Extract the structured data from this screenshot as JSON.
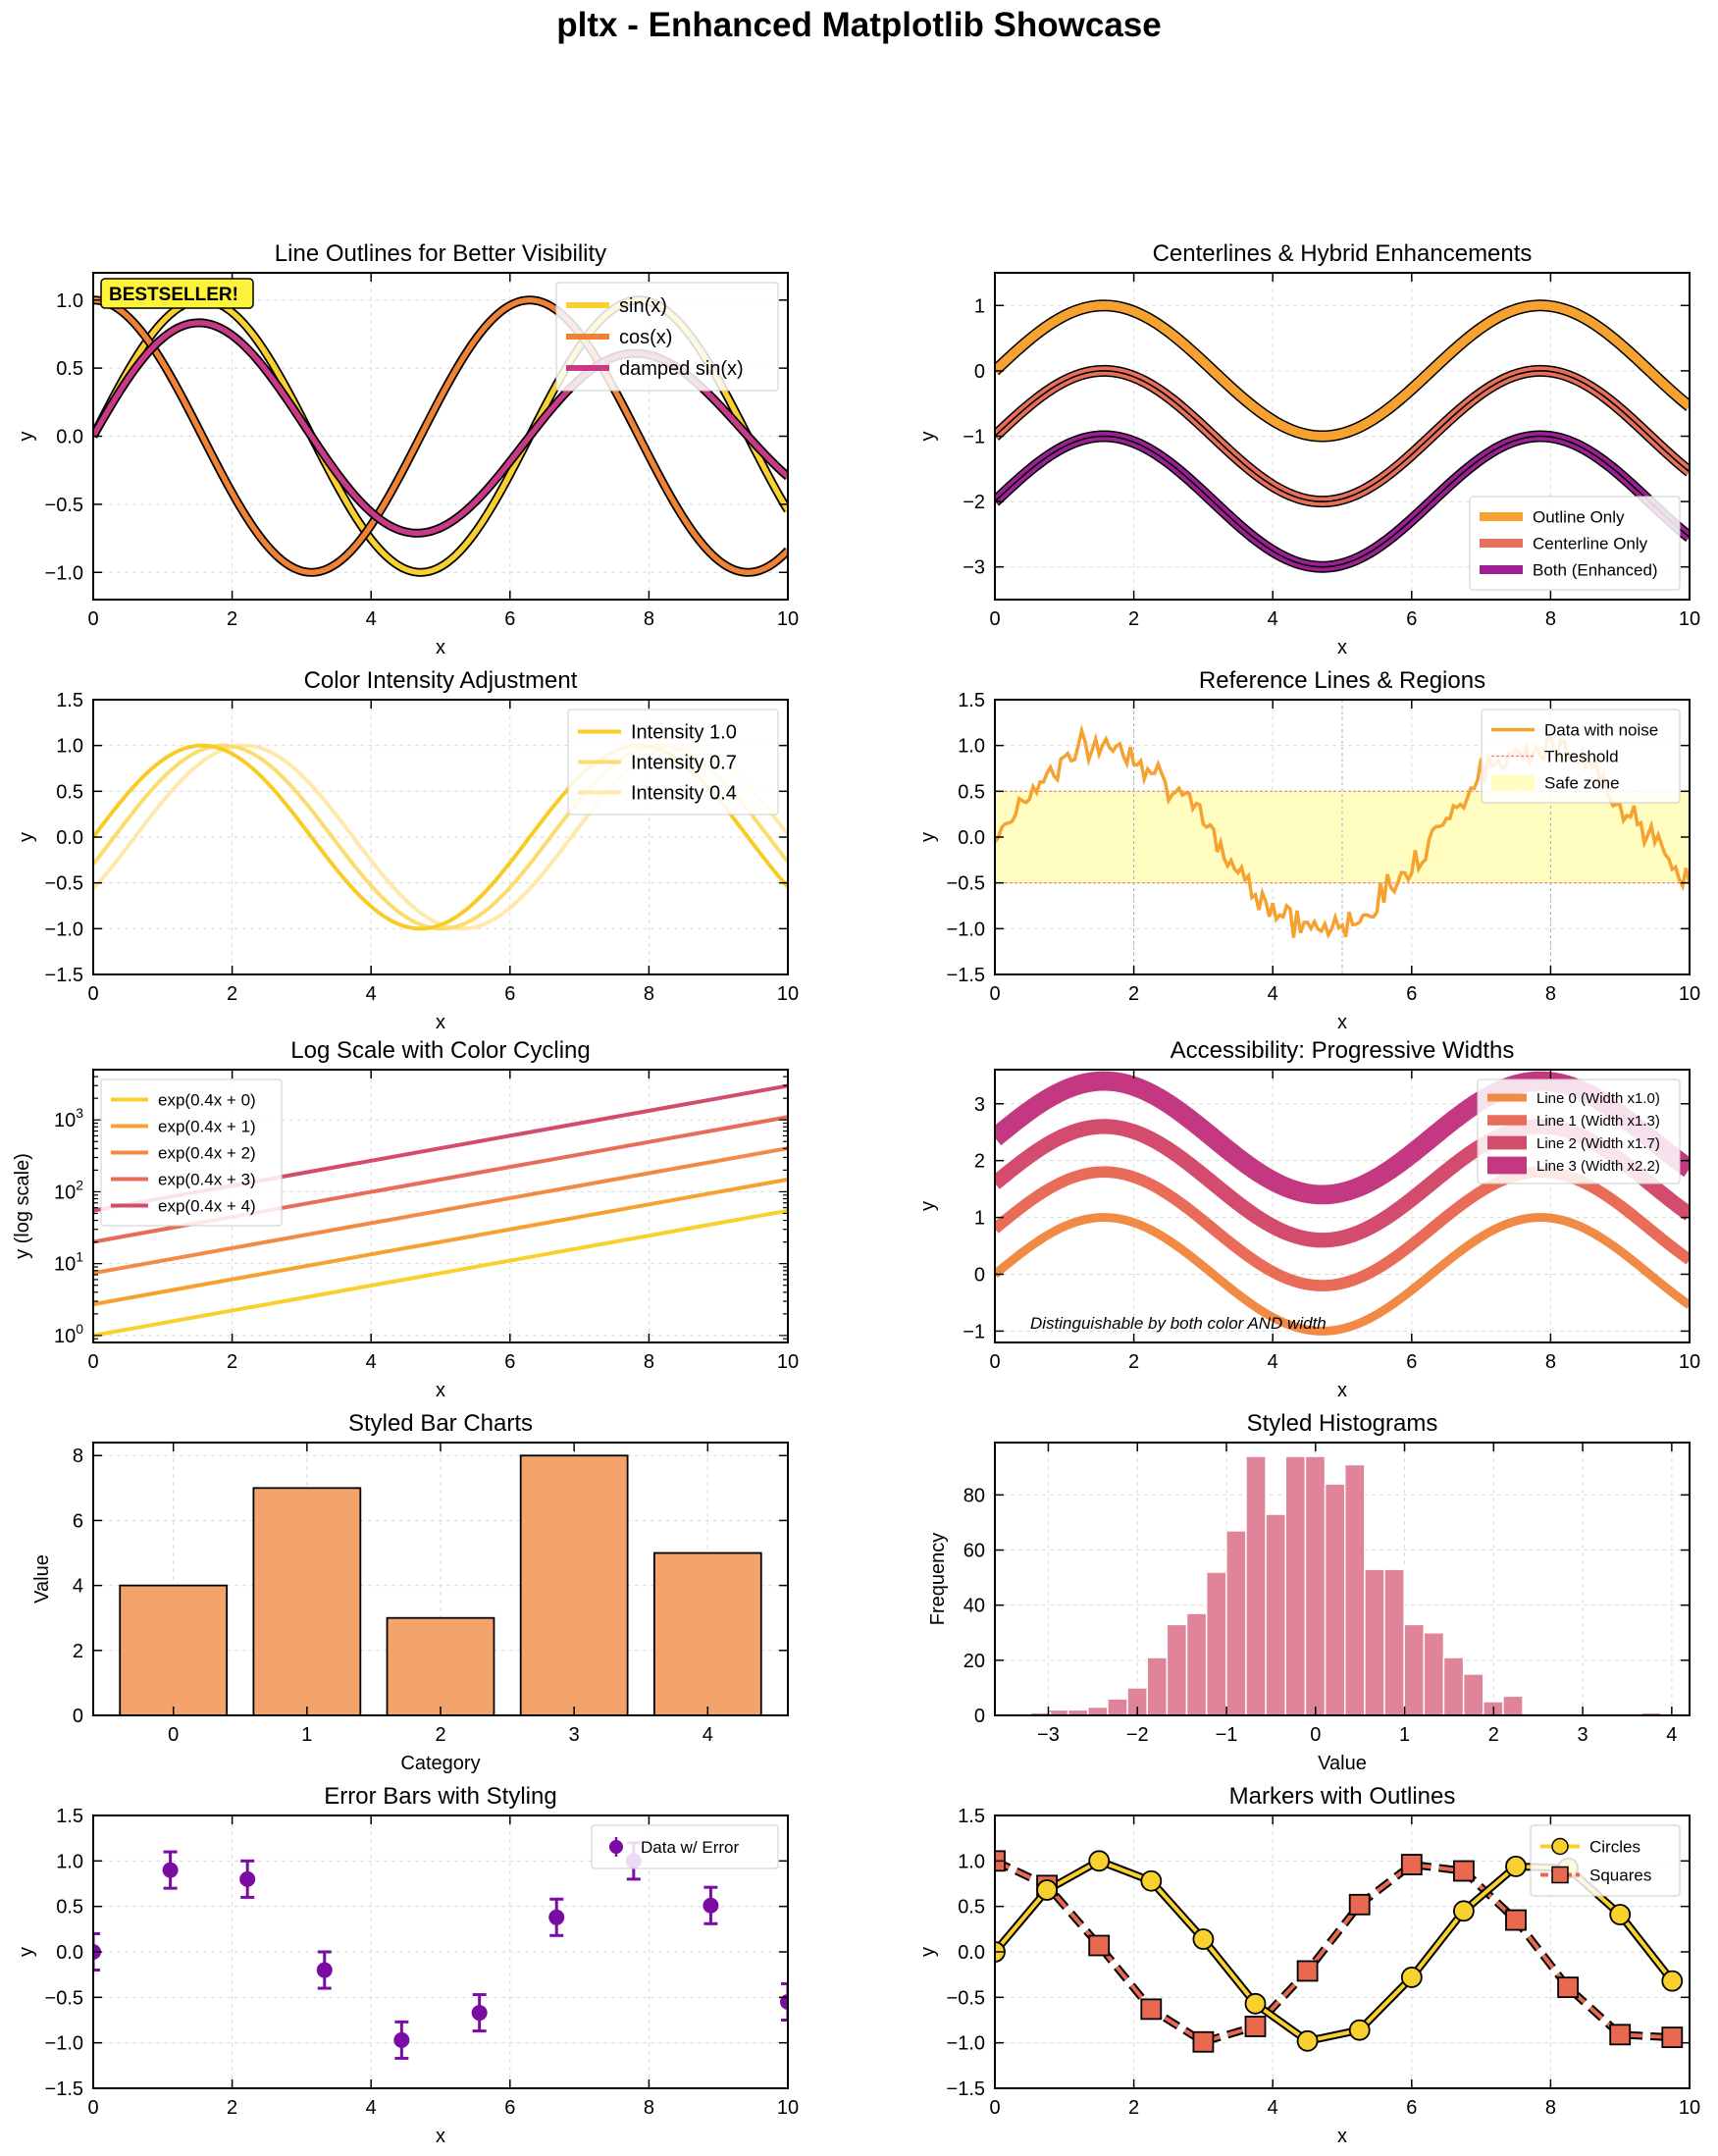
{
  "figure": {
    "title": "pltx - Enhanced Matplotlib Showcase"
  },
  "colors": {
    "sin": "#f8d12e",
    "cos": "#f08236",
    "damped": "#c83a87",
    "orange": "#f6a230",
    "coral": "#e8705a",
    "purple": "#9c1f93",
    "bar": "#f4a36a",
    "hist": "#e08499",
    "errbar": "#7a0ba3",
    "logs": [
      "#f8d12e",
      "#f6a230",
      "#f08a45",
      "#e86c58",
      "#d34c6d"
    ],
    "prog": [
      "#f08a45",
      "#e86c58",
      "#d34c6d",
      "#c43882"
    ]
  },
  "chart_data": [
    {
      "id": "p1",
      "type": "line",
      "title": "Line Outlines for Better Visibility",
      "xlabel": "x",
      "ylabel": "y",
      "xlim": [
        0,
        10
      ],
      "ylim": [
        -1.2,
        1.2
      ],
      "xticks": [
        0,
        2,
        4,
        6,
        8,
        10
      ],
      "xtick_labels": [
        "0",
        "2",
        "4",
        "6",
        "8",
        "10"
      ],
      "yticks": [
        -1.0,
        -0.5,
        0.0,
        0.5,
        1.0
      ],
      "ytick_labels": [
        "−1.0",
        "−0.5",
        "0.0",
        "0.5",
        "1.0"
      ],
      "badge": "BESTSELLER!",
      "legend_position": "upper-right",
      "series": [
        {
          "name": "sin(x)",
          "function": "sin(x)",
          "color": "sin",
          "outlined": true
        },
        {
          "name": "cos(x)",
          "function": "cos(x)",
          "color": "cos",
          "outlined": true
        },
        {
          "name": "damped sin(x)",
          "function": "0.9*sin(x)*exp(-0.05x)",
          "color": "damped",
          "outlined": true
        }
      ]
    },
    {
      "id": "p2",
      "type": "line",
      "title": "Centerlines & Hybrid Enhancements",
      "xlabel": "x",
      "ylabel": "y",
      "xlim": [
        0,
        10
      ],
      "ylim": [
        -3.5,
        1.5
      ],
      "xticks": [
        0,
        2,
        4,
        6,
        8,
        10
      ],
      "xtick_labels": [
        "0",
        "2",
        "4",
        "6",
        "8",
        "10"
      ],
      "yticks": [
        -3,
        -2,
        -1,
        0,
        1
      ],
      "ytick_labels": [
        "−3",
        "−2",
        "−1",
        "0",
        "1"
      ],
      "legend_position": "lower-right",
      "series": [
        {
          "name": "Outline Only",
          "function": "sin(x)",
          "color": "orange",
          "style": "outline"
        },
        {
          "name": "Centerline Only",
          "function": "sin(x) - 1",
          "color": "coral",
          "style": "centerline"
        },
        {
          "name": "Both (Enhanced)",
          "function": "sin(x) - 2",
          "color": "purple",
          "style": "both"
        }
      ]
    },
    {
      "id": "p3",
      "type": "line",
      "title": "Color Intensity Adjustment",
      "xlabel": "x",
      "ylabel": "y",
      "xlim": [
        0,
        10
      ],
      "ylim": [
        -1.5,
        1.5
      ],
      "xticks": [
        0,
        2,
        4,
        6,
        8,
        10
      ],
      "xtick_labels": [
        "0",
        "2",
        "4",
        "6",
        "8",
        "10"
      ],
      "yticks": [
        -1.5,
        -1.0,
        -0.5,
        0.0,
        0.5,
        1.0,
        1.5
      ],
      "ytick_labels": [
        "−1.5",
        "−1.0",
        "−0.5",
        "0.0",
        "0.5",
        "1.0",
        "1.5"
      ],
      "legend_position": "upper-right",
      "series": [
        {
          "name": "Intensity 1.0",
          "function": "sin(x)",
          "color": "#f8cc25"
        },
        {
          "name": "Intensity 0.7",
          "function": "sin(x - 0.3)",
          "color": "#fbdd6f"
        },
        {
          "name": "Intensity 0.4",
          "function": "sin(x - 0.6)",
          "color": "#fde9ab"
        }
      ]
    },
    {
      "id": "p4",
      "type": "line",
      "title": "Reference Lines & Regions",
      "xlabel": "x",
      "ylabel": "y",
      "xlim": [
        0,
        10
      ],
      "ylim": [
        -1.5,
        1.5
      ],
      "xticks": [
        0,
        2,
        4,
        6,
        8,
        10
      ],
      "xtick_labels": [
        "0",
        "2",
        "4",
        "6",
        "8",
        "10"
      ],
      "yticks": [
        -1.5,
        -1.0,
        -0.5,
        0.0,
        0.5,
        1.0,
        1.5
      ],
      "ytick_labels": [
        "−1.5",
        "−1.0",
        "−0.5",
        "0.0",
        "0.5",
        "1.0",
        "1.5"
      ],
      "legend_position": "upper-right",
      "series": [
        {
          "name": "Data with noise",
          "function": "sin(x) + noise(0.1)",
          "color": "orange"
        },
        {
          "name": "Threshold",
          "type": "hline",
          "values": [
            0.5,
            -0.5
          ],
          "color": "#f47c7c"
        },
        {
          "name": "Safe zone",
          "type": "band",
          "range": [
            -0.5,
            0.5
          ],
          "color": "#fffdc0"
        }
      ],
      "vlines": [
        2,
        5,
        8
      ]
    },
    {
      "id": "p5",
      "type": "line",
      "title": "Log Scale with Color Cycling",
      "xlabel": "x",
      "ylabel": "y (log scale)",
      "xlim": [
        0,
        10
      ],
      "ylim": [
        0.8,
        5000
      ],
      "yscale": "log",
      "xticks": [
        0,
        2,
        4,
        6,
        8,
        10
      ],
      "xtick_labels": [
        "0",
        "2",
        "4",
        "6",
        "8",
        "10"
      ],
      "yticks": [
        1,
        10,
        100,
        1000
      ],
      "legend_position": "upper-left",
      "series": [
        {
          "name": "exp(0.4x + 0)",
          "a": 0,
          "color": "#f8d12e"
        },
        {
          "name": "exp(0.4x + 1)",
          "a": 1,
          "color": "#f6a230"
        },
        {
          "name": "exp(0.4x + 2)",
          "a": 2,
          "color": "#f08a45"
        },
        {
          "name": "exp(0.4x + 3)",
          "a": 3,
          "color": "#e86c58"
        },
        {
          "name": "exp(0.4x + 4)",
          "a": 4,
          "color": "#d34c6d"
        }
      ]
    },
    {
      "id": "p6",
      "type": "line",
      "title": "Accessibility: Progressive Widths",
      "xlabel": "x",
      "ylabel": "y",
      "xlim": [
        0,
        10
      ],
      "ylim": [
        -1.2,
        3.6
      ],
      "xticks": [
        0,
        2,
        4,
        6,
        8,
        10
      ],
      "xtick_labels": [
        "0",
        "2",
        "4",
        "6",
        "8",
        "10"
      ],
      "yticks": [
        -1,
        0,
        1,
        2,
        3
      ],
      "ytick_labels": [
        "−1",
        "0",
        "1",
        "2",
        "3"
      ],
      "annotation": "Distinguishable by both color AND width",
      "legend_position": "upper-right",
      "series": [
        {
          "name": "Line 0 (Width x1.0)",
          "offset": 0,
          "width_factor": 1.0,
          "color": "#f08a45"
        },
        {
          "name": "Line 1 (Width x1.3)",
          "offset": 0.8,
          "width_factor": 1.3,
          "color": "#e86c58"
        },
        {
          "name": "Line 2 (Width x1.7)",
          "offset": 1.6,
          "width_factor": 1.7,
          "color": "#d34c6d"
        },
        {
          "name": "Line 3 (Width x2.2)",
          "offset": 2.4,
          "width_factor": 2.2,
          "color": "#c43882"
        }
      ]
    },
    {
      "id": "p7",
      "type": "bar",
      "title": "Styled Bar Charts",
      "xlabel": "Category",
      "ylabel": "Value",
      "xlim": [
        -0.6,
        4.6
      ],
      "ylim": [
        0,
        8.4
      ],
      "categories": [
        "0",
        "1",
        "2",
        "3",
        "4"
      ],
      "values": [
        4,
        7,
        3,
        8,
        5
      ],
      "yticks": [
        0,
        2,
        4,
        6,
        8
      ],
      "ytick_labels": [
        "0",
        "2",
        "4",
        "6",
        "8"
      ]
    },
    {
      "id": "p8",
      "type": "bar",
      "title": "Styled Histograms",
      "xlabel": "Value",
      "ylabel": "Frequency",
      "xlim": [
        -3.6,
        4.2
      ],
      "ylim": [
        0,
        99
      ],
      "xticks": [
        -3,
        -2,
        -1,
        0,
        1,
        2,
        3,
        4
      ],
      "xtick_labels": [
        "−3",
        "−2",
        "−1",
        "0",
        "1",
        "2",
        "3",
        "4"
      ],
      "yticks": [
        0,
        20,
        40,
        60,
        80
      ],
      "ytick_labels": [
        "0",
        "20",
        "40",
        "60",
        "80"
      ],
      "bin_start": -3.0,
      "bin_width": 0.222,
      "values": [
        2,
        2,
        3,
        6,
        10,
        21,
        33,
        37,
        52,
        67,
        94,
        73,
        94,
        94,
        84,
        91,
        53,
        53,
        33,
        30,
        21,
        15,
        5,
        7,
        0,
        0,
        0,
        0,
        0,
        0,
        1
      ],
      "extra_bins": [
        {
          "x": -3.2,
          "value": 1
        }
      ]
    },
    {
      "id": "p9",
      "type": "scatter",
      "title": "Error Bars with Styling",
      "xlabel": "x",
      "ylabel": "y",
      "xlim": [
        0,
        10
      ],
      "ylim": [
        -1.5,
        1.5
      ],
      "xticks": [
        0,
        2,
        4,
        6,
        8,
        10
      ],
      "xtick_labels": [
        "0",
        "2",
        "4",
        "6",
        "8",
        "10"
      ],
      "yticks": [
        -1.5,
        -1.0,
        -0.5,
        0.0,
        0.5,
        1.0,
        1.5
      ],
      "ytick_labels": [
        "−1.5",
        "−1.0",
        "−0.5",
        "0.0",
        "0.5",
        "1.0",
        "1.5"
      ],
      "legend_position": "upper-right",
      "series": [
        {
          "name": "Data w/ Error",
          "x": [
            0,
            1.11,
            2.22,
            3.33,
            4.44,
            5.56,
            6.67,
            7.78,
            8.89,
            10
          ],
          "y": [
            0.0,
            0.9,
            0.8,
            -0.2,
            -0.97,
            -0.67,
            0.38,
            1.0,
            0.51,
            -0.55
          ],
          "err": [
            0.2,
            0.2,
            0.2,
            0.2,
            0.2,
            0.2,
            0.2,
            0.2,
            0.2,
            0.2
          ]
        }
      ]
    },
    {
      "id": "p10",
      "type": "line",
      "title": "Markers with Outlines",
      "xlabel": "x",
      "ylabel": "y",
      "xlim": [
        0,
        10
      ],
      "ylim": [
        -1.5,
        1.5
      ],
      "xticks": [
        0,
        2,
        4,
        6,
        8,
        10
      ],
      "xtick_labels": [
        "0",
        "2",
        "4",
        "6",
        "8",
        "10"
      ],
      "yticks": [
        -1.5,
        -1.0,
        -0.5,
        0.0,
        0.5,
        1.0,
        1.5
      ],
      "ytick_labels": [
        "−1.5",
        "−1.0",
        "−0.5",
        "0.0",
        "0.5",
        "1.0",
        "1.5"
      ],
      "legend_position": "upper-right",
      "series": [
        {
          "name": "Circles",
          "marker": "circle",
          "color": "#f8d12e",
          "x": [
            0,
            0.75,
            1.5,
            2.25,
            3.0,
            3.75,
            4.5,
            5.25,
            6.0,
            6.75,
            7.5,
            8.25,
            9.0,
            9.75
          ],
          "y": [
            0.0,
            0.68,
            1.0,
            0.78,
            0.14,
            -0.57,
            -0.98,
            -0.86,
            -0.28,
            0.45,
            0.94,
            0.92,
            0.41,
            -0.32
          ]
        },
        {
          "name": "Squares",
          "marker": "square",
          "color": "#e8694f",
          "x": [
            0,
            0.75,
            1.5,
            2.25,
            3.0,
            3.75,
            4.5,
            5.25,
            6.0,
            6.75,
            7.5,
            8.25,
            9.0,
            9.75
          ],
          "y": [
            1.0,
            0.73,
            0.07,
            -0.63,
            -0.99,
            -0.82,
            -0.21,
            0.52,
            0.96,
            0.89,
            0.35,
            -0.39,
            -0.91,
            -0.94
          ]
        }
      ]
    }
  ]
}
